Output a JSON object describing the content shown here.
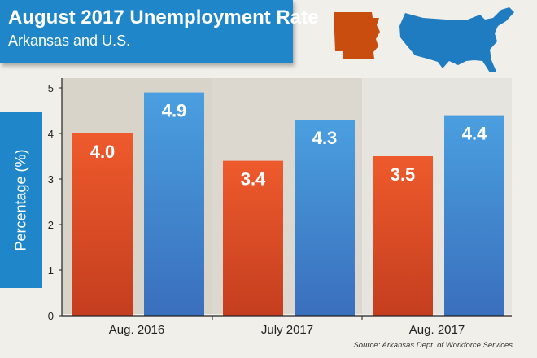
{
  "header": {
    "title": "August 2017 Unemployment Rate",
    "subtitle": "Arkansas and U.S."
  },
  "source_note": "Source: Arkansas Dept. of Workforce Services",
  "colors": {
    "banner": "#1f86c9",
    "arkansas": "#e8562a",
    "us": "#3f8fd4",
    "arkansas_map": "#c94d0f",
    "us_map": "#1f7cc0"
  },
  "chart_data": {
    "type": "bar",
    "title": "August 2017 Unemployment Rate",
    "subtitle": "Arkansas and U.S.",
    "categories": [
      "Aug. 2016",
      "July 2017",
      "Aug. 2017"
    ],
    "series": [
      {
        "values": [
          4.0,
          3.4,
          3.5
        ],
        "labels": [
          "4.0",
          "3.4",
          "3.5"
        ]
      },
      {
        "values": [
          4.9,
          4.3,
          4.4
        ],
        "labels": [
          "4.9",
          "4.3",
          "4.4"
        ]
      }
    ],
    "ylabel": "Percentage (%)",
    "yticks": [
      "0",
      "1",
      "2",
      "3",
      "4",
      "5"
    ],
    "ylim": [
      0,
      5
    ],
    "grid": false
  }
}
